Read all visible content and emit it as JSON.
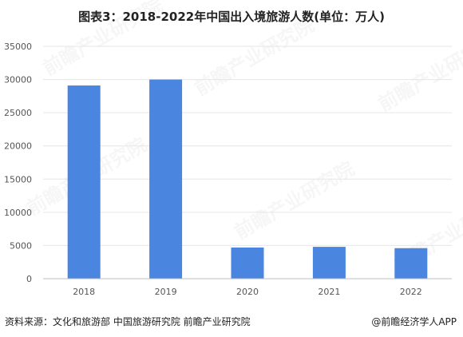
{
  "title": "图表3：2018-2022年中国出入境旅游人数(单位：万人)",
  "source": "资料来源：文化和旅游部 中国旅游研究院 前瞻产业研究院",
  "credit": "@前瞻经济学人APP",
  "watermark": "前瞻产业研究院",
  "colors": {
    "bar": "#4a86e0",
    "grid": "#e6e6e6",
    "axis": "#bfbfbf"
  },
  "chart_data": {
    "type": "bar",
    "categories": [
      "2018",
      "2019",
      "2020",
      "2021",
      "2022"
    ],
    "values": [
      29100,
      30000,
      4700,
      4800,
      4600
    ],
    "ylim": [
      0,
      35000
    ],
    "yticks": [
      0,
      5000,
      10000,
      15000,
      20000,
      25000,
      30000,
      35000
    ],
    "ytick_labels": [
      "0",
      "5000",
      "10000",
      "15000",
      "20000",
      "25000",
      "30000",
      "35000"
    ],
    "grid": true,
    "legend": "none"
  }
}
